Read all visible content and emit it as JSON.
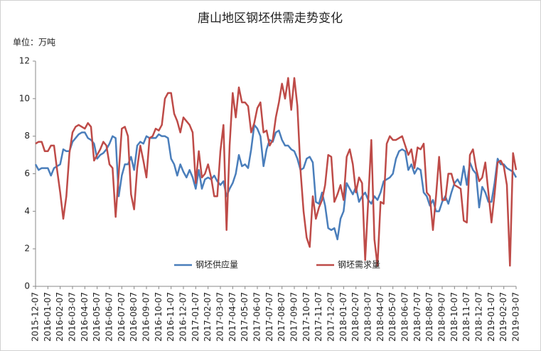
{
  "chart_data": {
    "type": "line",
    "title": "唐山地区钢坯供需走势变化",
    "unit_label": "单位：万吨",
    "categories": [
      "2015-12-07",
      null,
      null,
      null,
      "2016-01-07",
      null,
      null,
      null,
      "2016-02-07",
      null,
      null,
      null,
      "2016-03-07",
      null,
      null,
      null,
      "2016-04-07",
      null,
      null,
      null,
      "2016-05-07",
      null,
      null,
      null,
      "2016-06-07",
      null,
      null,
      null,
      "2016-07-07",
      null,
      null,
      null,
      "2016-08-07",
      null,
      null,
      null,
      "2016-09-07",
      null,
      null,
      null,
      "2016-10-07",
      null,
      null,
      null,
      "2016-11-07",
      null,
      null,
      null,
      "2016-12-07",
      null,
      null,
      null,
      "2017-01-07",
      null,
      null,
      null,
      "2017-02-07",
      null,
      null,
      null,
      "2017-03-07",
      null,
      null,
      null,
      "2017-04-07",
      null,
      null,
      null,
      "2017-05-07",
      null,
      null,
      null,
      "2017-06-07",
      null,
      null,
      null,
      "2017-07-07",
      null,
      null,
      null,
      "2017-08-07",
      null,
      null,
      null,
      "2017-09-07",
      null,
      null,
      null,
      "2017-10-07",
      null,
      null,
      null,
      "2017-11-07",
      null,
      null,
      null,
      "2017-12-07",
      null,
      null,
      null,
      "2018-01-07",
      null,
      null,
      null,
      "2018-02-07",
      null,
      null,
      null,
      "2018-03-07",
      null,
      null,
      null,
      "2018-04-07",
      null,
      null,
      null,
      "2018-05-07",
      null,
      null,
      null,
      "2018-06-07",
      null,
      null,
      null,
      "2018-07-07",
      null,
      null,
      null,
      "2018-08-07",
      null,
      null,
      null,
      "2018-09-07",
      null,
      null,
      null,
      "2018-10-07",
      null,
      null,
      null,
      "2018-11-07",
      null,
      null,
      null,
      "2018-12-07",
      null,
      null,
      null,
      "2019-01-07",
      null,
      null,
      null,
      "2019-02-07",
      null,
      null,
      null,
      "2019-03-07"
    ],
    "series": [
      {
        "name": "钢坯供应量",
        "color": "#4a7ebb",
        "values": [
          6.5,
          6.2,
          6.3,
          6.3,
          6.3,
          5.9,
          6.3,
          6.4,
          6.5,
          7.3,
          7.2,
          7.2,
          7.7,
          7.9,
          8.1,
          8.2,
          8.2,
          7.9,
          7.8,
          7.6,
          6.8,
          7.0,
          7.1,
          7.3,
          7.6,
          8.0,
          7.9,
          4.8,
          5.9,
          6.5,
          6.5,
          6.9,
          6.2,
          7.5,
          7.7,
          7.6,
          8.0,
          7.9,
          7.9,
          7.9,
          8.1,
          8.0,
          8.0,
          7.9,
          6.8,
          6.5,
          5.9,
          6.5,
          6.1,
          5.8,
          6.2,
          5.8,
          5.2,
          6.2,
          5.2,
          5.7,
          5.8,
          5.7,
          5.9,
          5.6,
          5.4,
          5.6,
          4.8,
          5.2,
          5.5,
          6.0,
          7.0,
          6.4,
          6.5,
          6.3,
          7.3,
          8.6,
          8.4,
          8.0,
          6.4,
          7.3,
          7.8,
          7.7,
          8.2,
          8.3,
          7.8,
          7.5,
          7.5,
          7.3,
          7.2,
          6.8,
          6.2,
          6.3,
          6.8,
          6.9,
          6.6,
          4.5,
          4.4,
          5.0,
          4.3,
          3.1,
          3.0,
          3.1,
          2.5,
          3.6,
          4.0,
          5.5,
          5.2,
          4.9,
          5.3,
          4.5,
          4.8,
          5.0,
          4.6,
          4.4,
          4.8,
          4.6,
          5.0,
          5.6,
          5.7,
          5.8,
          6.0,
          6.8,
          7.2,
          7.3,
          7.2,
          6.2,
          6.5,
          6.0,
          6.3,
          6.2,
          5.0,
          4.8,
          4.3,
          4.6,
          4.0,
          4.0,
          4.5,
          4.8,
          4.4,
          5.0,
          5.5,
          5.7,
          5.4,
          6.4,
          5.4,
          6.6,
          6.2,
          6.0,
          4.2,
          5.3,
          5.0,
          4.5,
          4.5,
          5.5,
          6.8,
          6.5,
          6.5,
          6.3,
          6.2,
          6.1,
          5.8
        ]
      },
      {
        "name": "钢坯需求量",
        "color": "#be4b48",
        "values": [
          7.6,
          7.7,
          7.7,
          7.2,
          7.2,
          7.5,
          7.5,
          6.2,
          5.0,
          3.6,
          4.8,
          7.1,
          8.2,
          8.5,
          8.6,
          8.5,
          8.4,
          8.7,
          8.5,
          6.7,
          7.0,
          7.3,
          7.7,
          7.5,
          6.5,
          6.3,
          3.7,
          6.0,
          8.4,
          8.5,
          8.0,
          4.9,
          4.1,
          6.3,
          7.5,
          6.7,
          5.8,
          7.9,
          8.0,
          8.4,
          8.3,
          8.6,
          10.0,
          10.3,
          10.3,
          9.2,
          8.8,
          8.2,
          9.0,
          8.8,
          8.6,
          8.2,
          5.5,
          7.2,
          5.8,
          6.0,
          6.5,
          5.8,
          4.8,
          4.8,
          7.2,
          8.6,
          3.0,
          7.5,
          10.3,
          9.0,
          10.6,
          9.8,
          9.8,
          9.6,
          8.2,
          8.7,
          9.5,
          9.8,
          8.2,
          8.3,
          7.5,
          7.8,
          9.0,
          9.8,
          10.8,
          10.0,
          11.1,
          9.4,
          11.1,
          9.6,
          6.2,
          4.0,
          2.6,
          2.1,
          4.8,
          3.6,
          4.2,
          4.6,
          5.4,
          7.0,
          6.9,
          4.5,
          4.9,
          5.4,
          4.6,
          6.9,
          7.3,
          6.5,
          5.0,
          5.8,
          5.5,
          1.4,
          4.6,
          7.8,
          2.5,
          1.1,
          4.5,
          4.4,
          7.6,
          8.0,
          7.8,
          7.8,
          7.9,
          8.0,
          7.5,
          7.0,
          7.3,
          6.3,
          7.4,
          7.3,
          7.6,
          5.0,
          4.8,
          3.0,
          4.8,
          6.9,
          4.6,
          4.6,
          6.0,
          6.0,
          5.4,
          5.3,
          5.2,
          3.5,
          3.4,
          7.0,
          7.3,
          6.3,
          5.6,
          5.8,
          6.6,
          5.0,
          3.4,
          4.9,
          6.6,
          6.7,
          6.4,
          5.4,
          1.1,
          7.1,
          6.2
        ]
      }
    ],
    "ylim": [
      0,
      12
    ],
    "yticks": [
      0,
      2,
      4,
      6,
      8,
      10,
      12
    ],
    "grid": false,
    "legend": "bottom"
  }
}
